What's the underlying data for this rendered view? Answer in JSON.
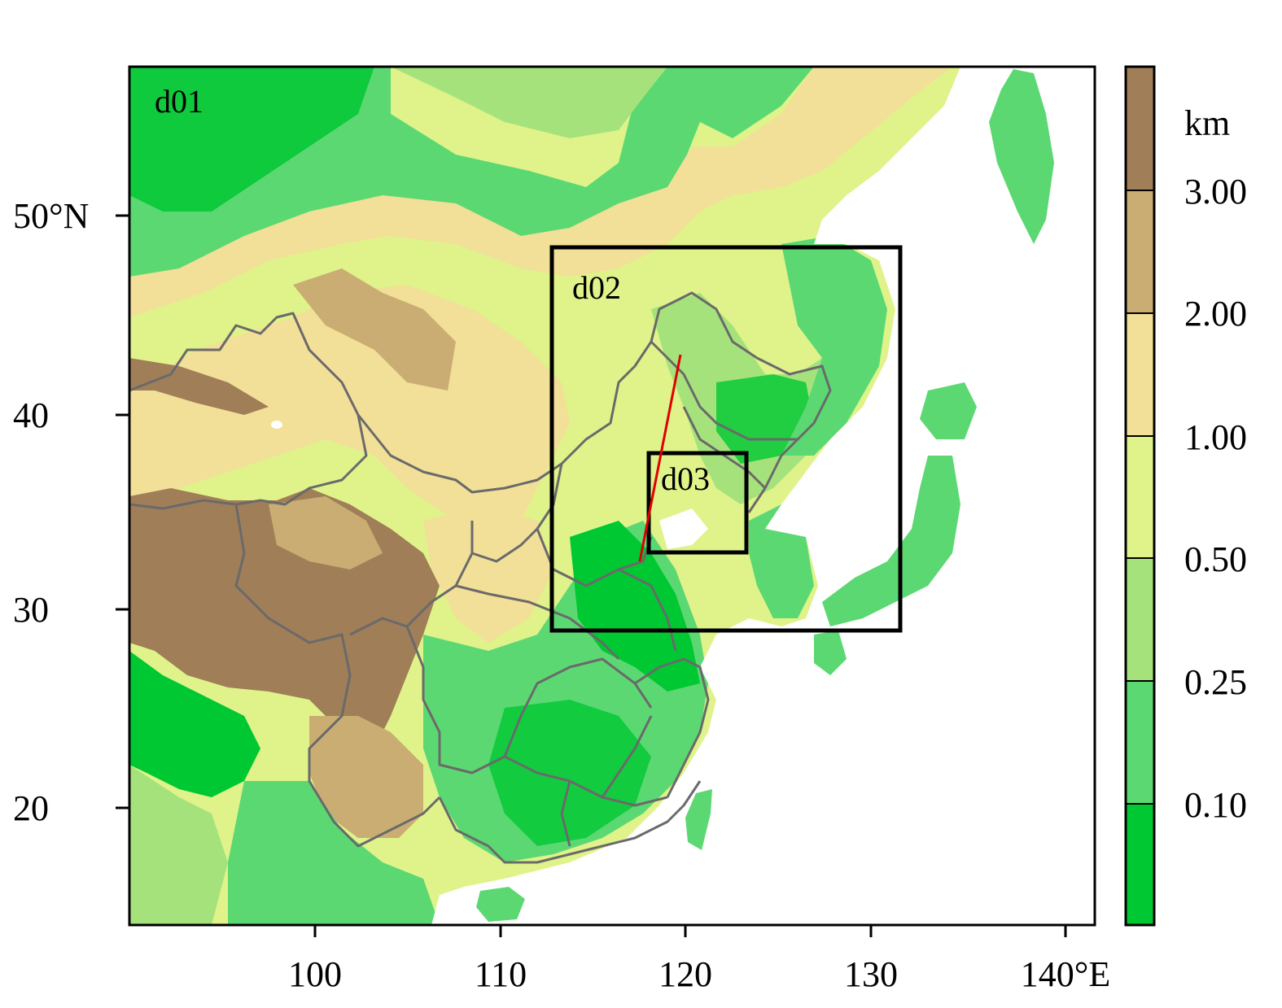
{
  "map": {
    "x_ticks": [
      "100",
      "110",
      "120",
      "130",
      "140°E"
    ],
    "y_ticks": [
      "50°N",
      "40",
      "30",
      "20"
    ],
    "domains": [
      {
        "id": "d01",
        "label": "d01"
      },
      {
        "id": "d02",
        "label": "d02"
      },
      {
        "id": "d03",
        "label": "d03"
      }
    ],
    "transect_color": "#e00000",
    "border_color": "#6a6a6a"
  },
  "colorbar": {
    "unit": "km",
    "labels": [
      "3.00",
      "2.00",
      "1.00",
      "0.50",
      "0.25",
      "0.10"
    ],
    "colors_top_to_bottom": [
      "#a07e58",
      "#c9ad72",
      "#f2df98",
      "#dff38a",
      "#a6e27c",
      "#5cd873",
      "#00c832"
    ]
  },
  "colors": {
    "ocean": "#ffffff",
    "lowland": "#00c832",
    "hills": "#5cd873",
    "plateau": "#a07e58"
  }
}
